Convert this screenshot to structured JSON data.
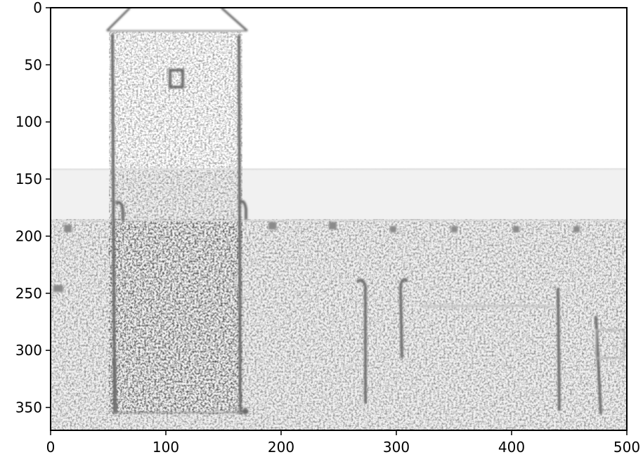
{
  "figure": {
    "kind": "image-plot",
    "description_visible": "grayscale edge-filtered image of a tower and wall",
    "colors": {
      "axes": "#000000",
      "background": "#ffffff",
      "edges": "#555555"
    }
  },
  "chart_data": {
    "type": "heatmap",
    "title": "",
    "xlabel": "",
    "ylabel": "",
    "xlim": [
      0,
      500
    ],
    "ylim": [
      370,
      0
    ],
    "y_inverted": true,
    "xticks": [
      0,
      100,
      200,
      300,
      400,
      500
    ],
    "yticks": [
      0,
      50,
      100,
      150,
      200,
      250,
      300,
      350
    ],
    "xtick_labels": [
      "0",
      "100",
      "200",
      "300",
      "400",
      "500"
    ],
    "ytick_labels": [
      "0",
      "50",
      "100",
      "150",
      "200",
      "250",
      "300",
      "350"
    ],
    "grid": false,
    "colormap": "gray"
  }
}
